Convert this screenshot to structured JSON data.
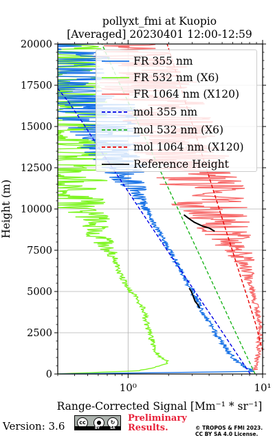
{
  "title_lines": [
    "pollyxt_fmi at Kuopio",
    "[Averaged] 20230401 12:00-12:59"
  ],
  "footer": {
    "version": "Version: 3.6",
    "license_badge": {
      "by": "BY",
      "sa": "SA"
    },
    "preliminary": [
      "Preliminary",
      "Results."
    ],
    "copyright": [
      "© TROPOS & FMI 2023.",
      "CC BY SA 4.0 License."
    ]
  },
  "chart_data": {
    "type": "line",
    "xlabel": "Range-Corrected Signal [Mm⁻¹ * sr⁻¹]",
    "ylabel": "Height (m)",
    "xscale": "log",
    "xlim": [
      0.3,
      10
    ],
    "ylim": [
      0,
      20000
    ],
    "x_tick_labels": [
      {
        "value": 1,
        "label": "10⁰"
      },
      {
        "value": 10,
        "label": "10¹"
      }
    ],
    "y_ticks": [
      0,
      2500,
      5000,
      7500,
      10000,
      12500,
      15000,
      17500,
      20000
    ],
    "grid": true,
    "legend_position": "upper-right",
    "colors": {
      "fr355": "#1a73e6",
      "fr532": "#7ff524",
      "fr1064": "#f76b6b",
      "mol355": "#0000e6",
      "mol532": "#1db51d",
      "mol1064": "#e60000",
      "ref": "#000000"
    },
    "series": [
      {
        "key": "fr355",
        "name": "FR 355 nm",
        "style": "solid",
        "points": [
          [
            0.3,
            0
          ],
          [
            8.5,
            150
          ],
          [
            7.5,
            400
          ],
          [
            6.6,
            700
          ],
          [
            5.9,
            1100
          ],
          [
            5.3,
            1600
          ],
          [
            4.7,
            2200
          ],
          [
            4.2,
            2800
          ],
          [
            3.75,
            3500
          ],
          [
            3.35,
            4200
          ],
          [
            3.0,
            5000
          ],
          [
            2.65,
            5800
          ],
          [
            2.35,
            6600
          ],
          [
            2.05,
            7400
          ],
          [
            1.8,
            8200
          ],
          [
            1.6,
            9000
          ],
          [
            1.4,
            9800
          ],
          [
            1.22,
            10600
          ],
          [
            1.08,
            11400
          ],
          [
            0.95,
            12200
          ],
          [
            0.84,
            13000
          ],
          [
            0.74,
            13800
          ],
          [
            0.65,
            14600
          ],
          [
            0.58,
            15400
          ],
          [
            0.51,
            16200
          ],
          [
            0.45,
            17000
          ],
          [
            0.4,
            17800
          ],
          [
            0.36,
            18600
          ],
          [
            0.32,
            19400
          ],
          [
            0.3,
            20000
          ]
        ],
        "noise_from": 9800
      },
      {
        "key": "fr532",
        "name": "FR 532 nm (X6)",
        "style": "solid",
        "points": [
          [
            0.3,
            0
          ],
          [
            1.2,
            200
          ],
          [
            1.8,
            500
          ],
          [
            2.0,
            800
          ],
          [
            1.7,
            1100
          ],
          [
            1.55,
            1600
          ],
          [
            1.45,
            2500
          ],
          [
            1.35,
            3200
          ],
          [
            1.3,
            4000
          ],
          [
            1.1,
            4800
          ],
          [
            0.95,
            5500
          ],
          [
            0.85,
            6300
          ],
          [
            0.78,
            7000
          ],
          [
            0.7,
            7700
          ],
          [
            0.62,
            8400
          ],
          [
            0.56,
            9000
          ],
          [
            0.5,
            9500
          ],
          [
            0.45,
            10000
          ],
          [
            0.41,
            10800
          ],
          [
            0.38,
            11600
          ],
          [
            0.35,
            12500
          ],
          [
            0.33,
            13500
          ],
          [
            0.32,
            14500
          ],
          [
            0.31,
            16000
          ],
          [
            0.3,
            20000
          ]
        ],
        "noise_from": 6800
      },
      {
        "key": "fr1064",
        "name": "FR 1064 nm (X120)",
        "style": "solid",
        "points": [
          [
            8.8,
            250
          ],
          [
            9.2,
            1200
          ],
          [
            9.6,
            2500
          ],
          [
            9.2,
            3700
          ],
          [
            8.6,
            4700
          ],
          [
            8.2,
            5300
          ],
          [
            7.8,
            5900
          ],
          [
            7.0,
            6800
          ],
          [
            6.3,
            7600
          ],
          [
            5.7,
            8300
          ],
          [
            5.0,
            9000
          ],
          [
            4.4,
            9700
          ],
          [
            3.9,
            10500
          ],
          [
            3.45,
            11300
          ],
          [
            3.1,
            12100
          ],
          [
            2.75,
            12900
          ],
          [
            2.45,
            13700
          ],
          [
            2.2,
            14500
          ],
          [
            1.95,
            15300
          ],
          [
            1.75,
            16100
          ],
          [
            1.55,
            16900
          ],
          [
            1.4,
            17700
          ],
          [
            1.25,
            18500
          ],
          [
            1.12,
            19300
          ],
          [
            1.0,
            20000
          ]
        ],
        "noise_from": 5500
      },
      {
        "key": "mol355",
        "name": "mol 355 nm",
        "style": "dashed",
        "points": [
          [
            8.1,
            0
          ],
          [
            6.1,
            1500
          ],
          [
            4.6,
            3000
          ],
          [
            3.45,
            4500
          ],
          [
            2.6,
            6000
          ],
          [
            1.95,
            7500
          ],
          [
            1.47,
            9000
          ],
          [
            1.11,
            10500
          ],
          [
            0.84,
            12000
          ],
          [
            0.63,
            13500
          ],
          [
            0.48,
            15000
          ],
          [
            0.36,
            16500
          ],
          [
            0.3,
            17300
          ]
        ]
      },
      {
        "key": "mol532",
        "name": "mol 532 nm (X6)",
        "style": "dashed",
        "points": [
          [
            8.8,
            0
          ],
          [
            7.2,
            1500
          ],
          [
            5.9,
            3000
          ],
          [
            4.85,
            4500
          ],
          [
            3.98,
            6000
          ],
          [
            3.27,
            7500
          ],
          [
            2.68,
            9000
          ],
          [
            2.2,
            10500
          ],
          [
            1.81,
            12000
          ],
          [
            1.49,
            13500
          ],
          [
            1.22,
            15000
          ],
          [
            1.0,
            16500
          ],
          [
            0.82,
            18000
          ],
          [
            0.68,
            19500
          ],
          [
            0.64,
            20000
          ]
        ]
      },
      {
        "key": "mol1064",
        "name": "mol 1064 nm (X120)",
        "style": "dashed",
        "points": [
          [
            10.0,
            1400
          ],
          [
            8.9,
            3000
          ],
          [
            7.8,
            4500
          ],
          [
            6.8,
            6000
          ],
          [
            5.95,
            7500
          ],
          [
            5.2,
            9000
          ],
          [
            4.55,
            10500
          ],
          [
            3.98,
            12000
          ],
          [
            3.48,
            13500
          ],
          [
            3.04,
            15000
          ],
          [
            2.66,
            16500
          ],
          [
            2.33,
            18000
          ],
          [
            2.04,
            19500
          ],
          [
            1.95,
            20000
          ]
        ]
      },
      {
        "key": "ref",
        "name": "Reference Height",
        "style": "solid",
        "points": [
          [
            2.6,
            9650
          ],
          [
            2.8,
            9450
          ],
          [
            3.1,
            9200
          ],
          [
            3.6,
            8950
          ],
          [
            4.0,
            8850
          ],
          [
            4.4,
            8650
          ]
        ],
        "extra_segment": [
          [
            2.85,
            5200
          ],
          [
            2.95,
            5000
          ],
          [
            3.05,
            4700
          ],
          [
            3.15,
            4400
          ],
          [
            3.3,
            4200
          ],
          [
            3.4,
            4000
          ]
        ]
      }
    ]
  }
}
